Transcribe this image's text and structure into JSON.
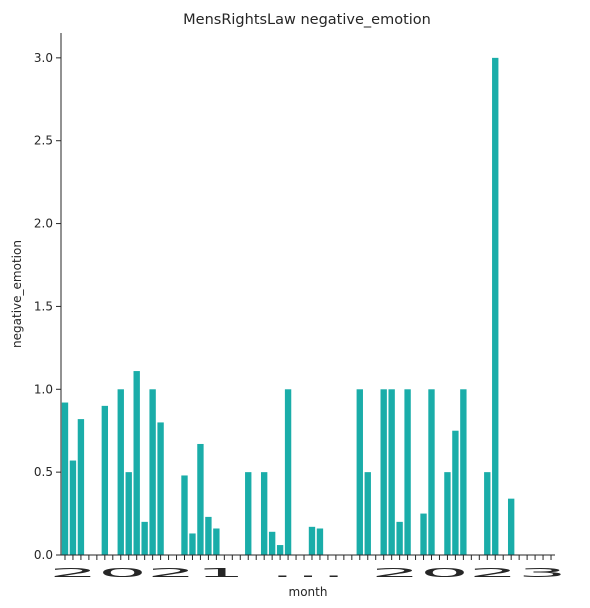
{
  "chart_data": {
    "type": "bar",
    "title": "MensRightsLaw negative_emotion",
    "xlabel": "month",
    "ylabel": "negative_emotion",
    "ylim": [
      0,
      3.15
    ],
    "yticks": [
      "0.0",
      "0.5",
      "1.0",
      "1.5",
      "2.0",
      "2.5",
      "3.0"
    ],
    "ytick_values": [
      0,
      0.5,
      1.0,
      1.5,
      2.0,
      2.5,
      3.0
    ],
    "bar_color": "#1aada9",
    "grid": false,
    "legend": "none",
    "x_tick_visible_text": "2021 … 2023",
    "values": [
      0.92,
      0.57,
      0.82,
      0,
      0,
      0.9,
      0,
      1.0,
      0.5,
      1.11,
      0.2,
      1.0,
      0.8,
      0,
      0,
      0.48,
      0.13,
      0.67,
      0.23,
      0.16,
      0,
      0,
      0,
      0.5,
      0,
      0.5,
      0.14,
      0.06,
      1.0,
      0,
      0,
      0.17,
      0.16,
      0,
      0,
      0,
      0,
      1.0,
      0.5,
      0,
      1.0,
      1.0,
      0.2,
      1.0,
      0,
      0.25,
      1.0,
      0,
      0.5,
      0.75,
      1.0,
      0,
      0,
      0.5,
      3.0,
      0,
      0.34,
      0,
      0,
      0,
      0,
      0
    ]
  }
}
